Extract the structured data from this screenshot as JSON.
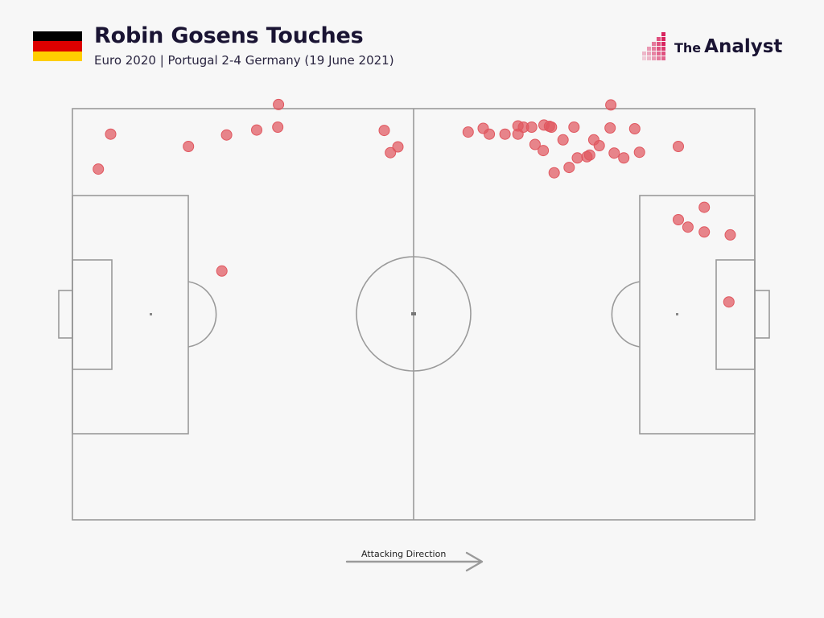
{
  "header": {
    "title": "Robin Gosens Touches",
    "subtitle": "Euro 2020 | Portugal 2-4 Germany (19 June 2021)",
    "flag_colors": [
      "#000000",
      "#dd0000",
      "#ffce00"
    ]
  },
  "brand": {
    "prefix": "The",
    "name": "Analyst",
    "accent_color": "#d8255f",
    "icon": "the-analyst-pixel-logo-icon"
  },
  "footer": {
    "direction_label": "Attacking Direction",
    "icon": "arrow-right-icon"
  },
  "chart_data": {
    "type": "scatter",
    "subtype": "football pitch touch map",
    "xlim": [
      0,
      100
    ],
    "ylim": [
      0,
      100
    ],
    "attacking_direction": "left-to-right",
    "marker_color": "#e0575f",
    "points": [
      {
        "x": 5.6,
        "y": 93.8
      },
      {
        "x": 3.8,
        "y": 85.3
      },
      {
        "x": 17.0,
        "y": 90.8
      },
      {
        "x": 22.6,
        "y": 93.6
      },
      {
        "x": 27.0,
        "y": 94.8
      },
      {
        "x": 30.2,
        "y": 101.0
      },
      {
        "x": 30.1,
        "y": 95.5
      },
      {
        "x": 45.7,
        "y": 94.7
      },
      {
        "x": 47.7,
        "y": 90.7
      },
      {
        "x": 46.6,
        "y": 89.3
      },
      {
        "x": 21.9,
        "y": 60.5
      },
      {
        "x": 58.0,
        "y": 94.3
      },
      {
        "x": 60.2,
        "y": 95.2
      },
      {
        "x": 61.1,
        "y": 93.8
      },
      {
        "x": 63.4,
        "y": 93.8
      },
      {
        "x": 65.3,
        "y": 95.8
      },
      {
        "x": 66.1,
        "y": 95.5
      },
      {
        "x": 67.3,
        "y": 95.5
      },
      {
        "x": 65.3,
        "y": 93.8
      },
      {
        "x": 67.8,
        "y": 91.3
      },
      {
        "x": 69.1,
        "y": 96.0
      },
      {
        "x": 69.9,
        "y": 95.7
      },
      {
        "x": 80.8,
        "y": 88.0
      },
      {
        "x": 70.2,
        "y": 95.5
      },
      {
        "x": 83.1,
        "y": 89.4
      },
      {
        "x": 71.9,
        "y": 92.4
      },
      {
        "x": 73.5,
        "y": 95.5
      },
      {
        "x": 69.0,
        "y": 89.8
      },
      {
        "x": 70.6,
        "y": 84.4
      },
      {
        "x": 74.0,
        "y": 88.0
      },
      {
        "x": 76.4,
        "y": 92.4
      },
      {
        "x": 77.2,
        "y": 91.0
      },
      {
        "x": 78.8,
        "y": 95.3
      },
      {
        "x": 82.4,
        "y": 95.1
      },
      {
        "x": 72.8,
        "y": 85.7
      },
      {
        "x": 75.4,
        "y": 88.3
      },
      {
        "x": 75.8,
        "y": 88.7
      },
      {
        "x": 79.4,
        "y": 89.2
      },
      {
        "x": 78.9,
        "y": 100.9
      },
      {
        "x": 88.8,
        "y": 90.8
      },
      {
        "x": 92.6,
        "y": 76.0
      },
      {
        "x": 88.8,
        "y": 73.0
      },
      {
        "x": 90.2,
        "y": 71.2
      },
      {
        "x": 92.6,
        "y": 70.0
      },
      {
        "x": 96.4,
        "y": 69.3
      },
      {
        "x": 96.2,
        "y": 53.0
      }
    ]
  }
}
